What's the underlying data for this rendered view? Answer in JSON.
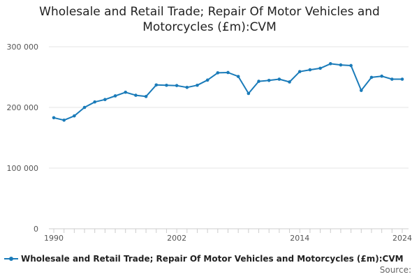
{
  "chart_data": {
    "type": "line",
    "title_lines": [
      "Wholesale and Retail Trade; Repair Of Motor Vehicles and",
      "Motorcycles (£m):CVM"
    ],
    "xlabel": "",
    "ylabel": "",
    "x": [
      1990,
      1991,
      1992,
      1993,
      1994,
      1995,
      1996,
      1997,
      1998,
      1999,
      2000,
      2001,
      2002,
      2003,
      2004,
      2005,
      2006,
      2007,
      2008,
      2009,
      2010,
      2011,
      2012,
      2013,
      2014,
      2015,
      2016,
      2017,
      2018,
      2019,
      2020,
      2021,
      2022,
      2023,
      2024
    ],
    "series": [
      {
        "name": "Wholesale and Retail Trade; Repair Of Motor Vehicles and Motorcycles (£m):CVM",
        "color": "#1a7bb9",
        "values": [
          183000,
          179000,
          186000,
          200000,
          209000,
          213000,
          219000,
          225000,
          220000,
          218000,
          237000,
          236500,
          236000,
          233000,
          236500,
          245000,
          257000,
          257500,
          251000,
          223000,
          243000,
          244500,
          246500,
          242000,
          259000,
          262000,
          264500,
          272000,
          270000,
          269000,
          228000,
          249500,
          251500,
          246500,
          246500
        ]
      }
    ],
    "xlim": [
      1990,
      2024
    ],
    "ylim": [
      0,
      300000
    ],
    "x_ticks": [
      1990,
      2002,
      2014,
      2024
    ],
    "x_tick_labels": [
      "1990",
      "2002",
      "2014",
      "2024"
    ],
    "y_ticks": [
      0,
      100000,
      200000,
      300000
    ],
    "y_tick_labels": [
      "0",
      "100 000",
      "200 000",
      "300 000"
    ],
    "grid": "horizontal",
    "legend_position": "bottom-left",
    "source_label": "Source:"
  }
}
